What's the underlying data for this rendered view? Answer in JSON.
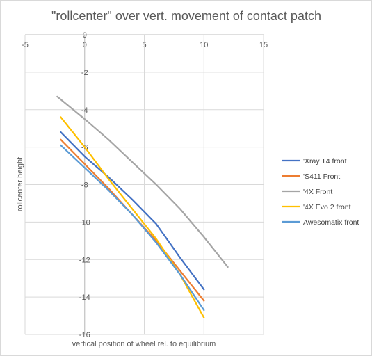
{
  "chart_data": {
    "type": "scatter",
    "title": "\"rollcenter\" over vert. movement of contact patch",
    "xlabel": "vertical position of wheel rel. to equilibrium",
    "ylabel": "rollcenter height",
    "xlim": [
      -5,
      15
    ],
    "ylim": [
      -16,
      0
    ],
    "xticks": [
      -5,
      0,
      5,
      10,
      15
    ],
    "yticks": [
      0,
      -2,
      -4,
      -6,
      -8,
      -10,
      -12,
      -14,
      -16
    ],
    "x_tick_labels": [
      "-5",
      "0",
      "5",
      "10",
      "15"
    ],
    "y_tick_labels": [
      "0",
      "-2",
      "-4",
      "-6",
      "-8",
      "-10",
      "-12",
      "-14",
      "-16"
    ],
    "grid": true,
    "legend_position": "right",
    "series": [
      {
        "name": "'Xray T4 front",
        "color": "#4472C4",
        "x": [
          -2,
          0,
          2,
          4,
          6,
          8,
          10
        ],
        "y": [
          -5.2,
          -6.5,
          -7.6,
          -8.8,
          -10.1,
          -11.9,
          -13.6
        ]
      },
      {
        "name": "'S411 Front",
        "color": "#ED7D31",
        "x": [
          -2,
          0,
          2,
          4,
          6,
          8,
          10
        ],
        "y": [
          -5.6,
          -6.9,
          -8.2,
          -9.6,
          -11.0,
          -12.6,
          -14.2
        ]
      },
      {
        "name": "'4X Front",
        "color": "#A5A5A5",
        "x": [
          -2.3,
          0,
          2,
          4,
          6,
          8,
          10,
          12
        ],
        "y": [
          -3.3,
          -4.5,
          -5.6,
          -6.8,
          -8.0,
          -9.3,
          -10.8,
          -12.4
        ]
      },
      {
        "name": "'4X Evo 2 front",
        "color": "#FFC000",
        "x": [
          -2,
          0,
          2,
          4,
          6,
          8,
          10
        ],
        "y": [
          -4.4,
          -6.0,
          -7.7,
          -9.3,
          -10.9,
          -12.8,
          -15.1
        ]
      },
      {
        "name": "Awesomatix front",
        "color": "#5B9BD5",
        "x": [
          -2,
          0,
          2,
          4,
          6,
          8,
          10
        ],
        "y": [
          -5.9,
          -7.1,
          -8.3,
          -9.6,
          -11.1,
          -12.8,
          -14.7
        ]
      }
    ]
  }
}
